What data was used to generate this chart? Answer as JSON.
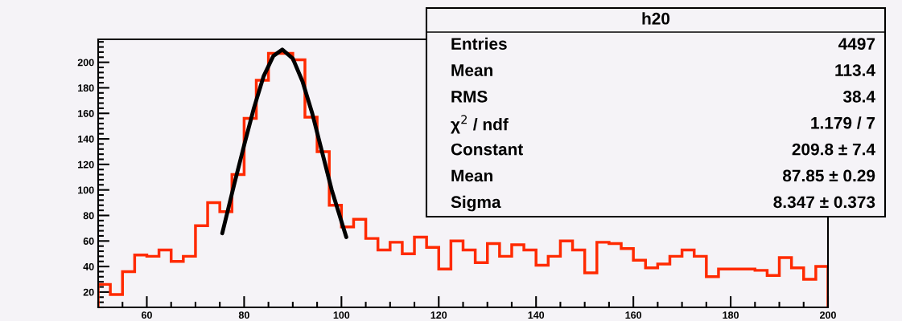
{
  "chart_data": {
    "type": "histogram",
    "bins": [
      50,
      52.5,
      55,
      57.5,
      60,
      62.5,
      65,
      67.5,
      70,
      72.5,
      75,
      77.5,
      80,
      82.5,
      85,
      87.5,
      90,
      92.5,
      95,
      97.5,
      100,
      102.5,
      105,
      107.5,
      110,
      112.5,
      115,
      117.5,
      120,
      122.5,
      125,
      127.5,
      130,
      132.5,
      135,
      137.5,
      140,
      142.5,
      145,
      147.5,
      150,
      152.5,
      155,
      157.5,
      160,
      162.5,
      165,
      167.5,
      170,
      172.5,
      175,
      177.5,
      180,
      182.5,
      185,
      187.5,
      190,
      192.5,
      195,
      197.5,
      200
    ],
    "series": [
      {
        "color": "#ff2a00",
        "values": [
          26,
          18,
          36,
          49,
          48,
          53,
          44,
          48,
          72,
          90,
          83,
          112,
          156,
          186,
          207,
          207,
          202,
          157,
          130,
          88,
          71,
          77,
          62,
          53,
          59,
          50,
          63,
          55,
          38,
          60,
          53,
          43,
          58,
          48,
          57,
          53,
          41,
          48,
          60,
          53,
          35,
          59,
          58,
          54,
          45,
          39,
          42,
          48,
          53,
          48,
          32,
          38,
          38,
          38,
          37,
          33,
          47,
          39,
          30,
          40
        ]
      },
      {
        "type": "line",
        "color": "#000000",
        "x": [
          75.5,
          78,
          80,
          82,
          84,
          86,
          87.85,
          90,
          92,
          94,
          96,
          98,
          101
        ],
        "values": [
          66,
          105,
          135,
          164,
          189,
          205,
          210,
          203,
          185,
          160,
          130,
          100,
          63
        ]
      }
    ],
    "xlim": [
      50,
      200
    ],
    "xticks": [
      60,
      80,
      100,
      120,
      140,
      160,
      180,
      200
    ],
    "ylim": [
      8,
      218
    ],
    "yticks": [
      20,
      40,
      60,
      80,
      100,
      120,
      140,
      160,
      180,
      200
    ],
    "grid": false,
    "annotations": [
      "h20",
      "Entries",
      "4497",
      "Mean",
      "113.4",
      "RMS",
      "38.4",
      "χ$^{2}$ / ndf",
      "1.179 / 7",
      "Constant",
      "209.8 ± 7.4",
      "Mean",
      "87.85 ± 0.29",
      "Sigma",
      "8.347 ± 0.373"
    ]
  }
}
